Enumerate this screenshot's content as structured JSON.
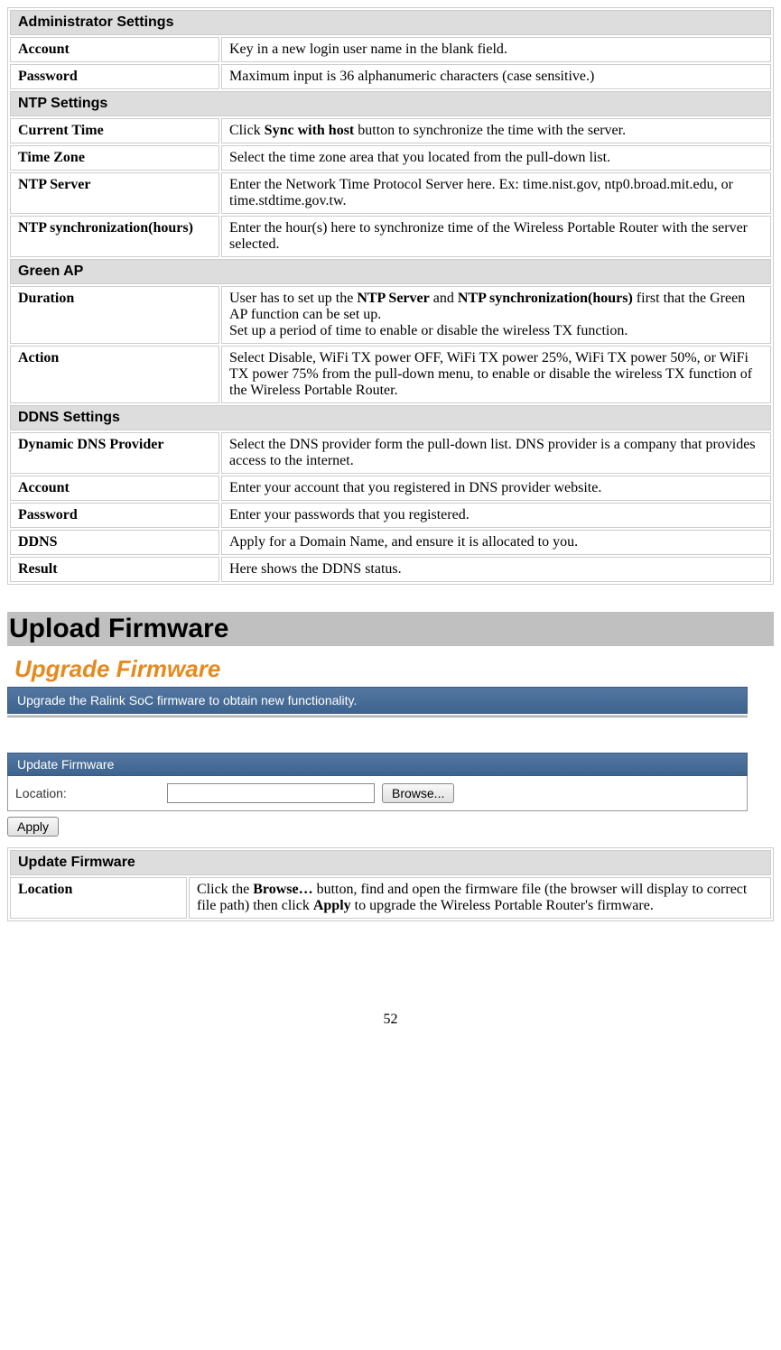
{
  "table1": {
    "admin_header": "Administrator Settings",
    "account_label": "Account",
    "account_desc": "Key in a new login user name in the blank field.",
    "password_label": "Password",
    "password_desc": "Maximum input is 36 alphanumeric characters (case sensitive.)",
    "ntp_header": "NTP Settings",
    "currtime_label": "Current Time",
    "currtime_desc_pre": "Click ",
    "currtime_desc_bold": "Sync with host",
    "currtime_desc_post": " button to synchronize the time with the server.",
    "tz_label": "Time Zone",
    "tz_desc": "Select the time zone area that you located from the pull-down list.",
    "ntpserver_label": "NTP Server",
    "ntpserver_desc": "Enter the Network Time Protocol Server here. Ex: time.nist.gov, ntp0.broad.mit.edu, or time.stdtime.gov.tw.",
    "ntpsync_label": "NTP synchronization(hours)",
    "ntpsync_desc": "Enter the hour(s) here to synchronize time of the Wireless Portable Router with the server selected.",
    "green_header": "Green AP",
    "duration_label": "Duration",
    "duration_desc_pre": "User has to set up the ",
    "duration_desc_b1": "NTP Server",
    "duration_desc_mid": " and ",
    "duration_desc_b2": "NTP synchronization(hours)",
    "duration_desc_line1_post": " first that the Green AP function can be set up.",
    "duration_desc_line2": "Set up a period of time to enable or disable the wireless TX function.",
    "action_label": "Action",
    "action_desc": "Select Disable, WiFi TX power OFF, WiFi TX power 25%, WiFi TX power 50%, or WiFi TX power 75% from the pull-down menu, to enable or disable the wireless TX function of the Wireless Portable Router.",
    "ddns_header": "DDNS Settings",
    "ddnsprov_label": "Dynamic DNS Provider",
    "ddnsprov_desc": "Select the DNS provider form the pull-down list. DNS provider is a company that provides access to the internet.",
    "ddnsacct_label": "Account",
    "ddnsacct_desc": "Enter your account that you registered in DNS provider website.",
    "ddnspw_label": "Password",
    "ddnspw_desc": "Enter your passwords that you registered.",
    "ddns_label": "DDNS",
    "ddns_desc": "Apply for a Domain Name, and ensure it is allocated to you.",
    "result_label": "Result",
    "result_desc": "Here shows the DDNS status."
  },
  "heading": "Upload Firmware",
  "screenshot": {
    "upgrade_title": "Upgrade Firmware",
    "banner_text": "Upgrade the Ralink SoC firmware to obtain new functionality.",
    "form_header": "Update Firmware",
    "location_label": "Location:",
    "browse_button": "Browse...",
    "apply_button": "Apply"
  },
  "table2": {
    "header": "Update Firmware",
    "location_label": "Location",
    "location_desc_pre": "Click the ",
    "location_desc_b1": "Browse…",
    "location_desc_mid": " button, find and open the firmware file (the browser will display to correct file path) then click ",
    "location_desc_b2": "Apply",
    "location_desc_post": " to upgrade the Wireless Portable Router's firmware."
  },
  "page_number": "52",
  "colors": {
    "header_bg": "#dddddd",
    "border": "#cccccc",
    "banner_bg": "#4a6f9a",
    "orange": "#e68a1f"
  }
}
